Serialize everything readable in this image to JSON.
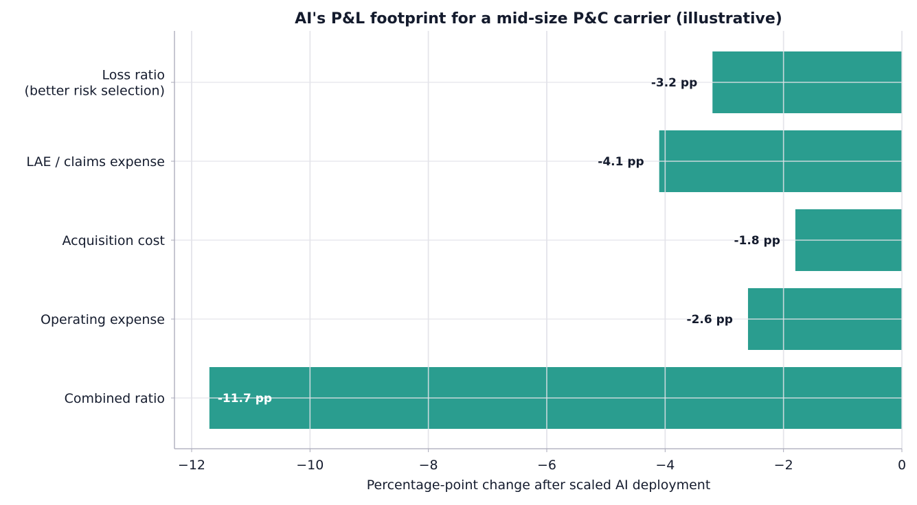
{
  "chart_data": {
    "type": "bar",
    "orientation": "horizontal",
    "title": "AI's P&L footprint for a mid-size P&C carrier (illustrative)",
    "xlabel": "Percentage-point change after scaled AI deployment",
    "ylabel": "",
    "categories": [
      "Loss ratio\n(better risk selection)",
      "LAE / claims expense",
      "Acquisition cost",
      "Operating expense",
      "Combined ratio"
    ],
    "values": [
      -3.2,
      -4.1,
      -1.8,
      -2.6,
      -11.7
    ],
    "data_labels": [
      "-3.2 pp",
      "-4.1 pp",
      "-1.8 pp",
      "-2.6 pp",
      "-11.7 pp"
    ],
    "xlim": [
      -12.29,
      0
    ],
    "xticks": [
      -12,
      -10,
      -8,
      -6,
      -4,
      -2,
      0
    ],
    "xtick_labels": [
      "−12",
      "−10",
      "−8",
      "−6",
      "−4",
      "−2",
      "0"
    ],
    "grid": true,
    "bar_color": "#2a9d8f"
  }
}
